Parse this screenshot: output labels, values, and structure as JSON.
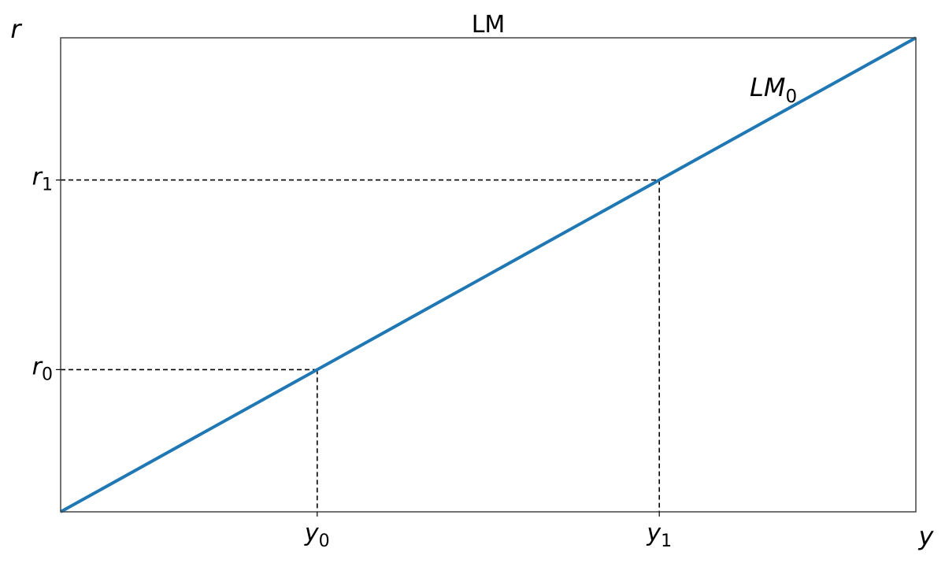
{
  "chart_data": {
    "type": "line",
    "title": "LM",
    "xlabel": "y",
    "ylabel": "r",
    "xlim": [
      0,
      10
    ],
    "ylim": [
      0,
      10
    ],
    "grid": false,
    "legend": "none",
    "series": [
      {
        "name": "LM",
        "name_sub": "0",
        "color": "#1f77b4",
        "x": [
          0,
          10
        ],
        "y": [
          0,
          10
        ]
      }
    ],
    "guides": [
      {
        "x": 3,
        "y": 3
      },
      {
        "x": 7,
        "y": 7
      }
    ],
    "xticks": [
      {
        "value": 3,
        "label": "y",
        "sub": "0"
      },
      {
        "value": 7,
        "label": "y",
        "sub": "1"
      }
    ],
    "yticks": [
      {
        "value": 3,
        "label": "r",
        "sub": "0"
      },
      {
        "value": 7,
        "label": "r",
        "sub": "1"
      }
    ]
  }
}
